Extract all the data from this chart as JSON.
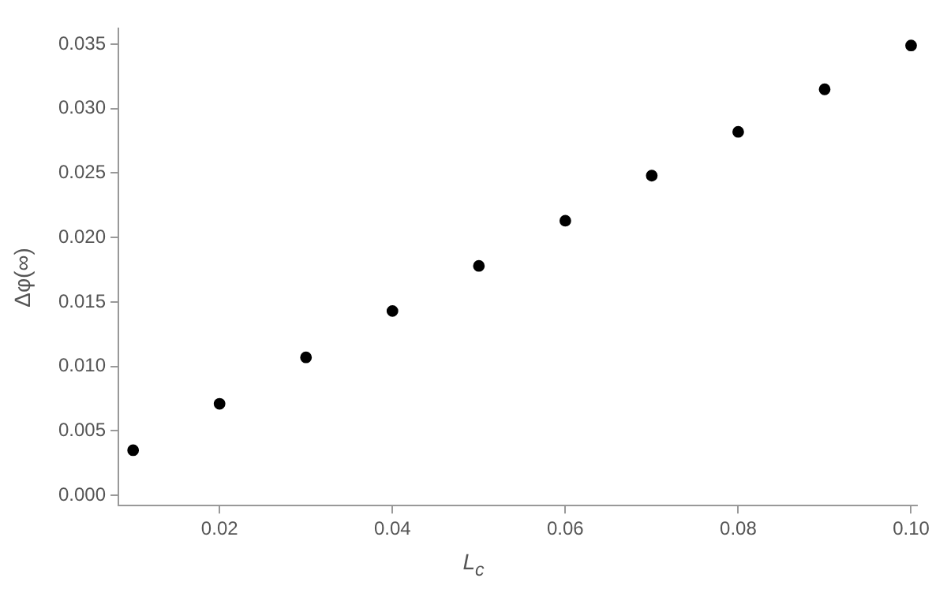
{
  "chart_data": {
    "type": "scatter",
    "xlabel": "L$_{c}$",
    "ylabel": "Δφ(∞)",
    "x": [
      0.01,
      0.02,
      0.03,
      0.04,
      0.05,
      0.06,
      0.07,
      0.08,
      0.09,
      0.1
    ],
    "series": [
      {
        "color": "#000000",
        "values": [
          0.0035,
          0.0071,
          0.0107,
          0.0143,
          0.0178,
          0.0213,
          0.0248,
          0.0282,
          0.0315,
          0.0349
        ]
      }
    ],
    "xlim": [
      0.0083,
      0.1007
    ],
    "ylim": [
      -0.0008,
      0.0362
    ],
    "xticks": [
      {
        "value": 0.02,
        "label": "0.02"
      },
      {
        "value": 0.04,
        "label": "0.04"
      },
      {
        "value": 0.06,
        "label": "0.06"
      },
      {
        "value": 0.08,
        "label": "0.08"
      },
      {
        "value": 0.1,
        "label": "0.10"
      }
    ],
    "yticks": [
      {
        "value": 0,
        "label": "0.000"
      },
      {
        "value": 0.005,
        "label": "0.005"
      },
      {
        "value": 0.01,
        "label": "0.010"
      },
      {
        "value": 0.015,
        "label": "0.015"
      },
      {
        "value": 0.02,
        "label": "0.020"
      },
      {
        "value": 0.025,
        "label": "0.025"
      },
      {
        "value": 0.03,
        "label": "0.030"
      },
      {
        "value": 0.035,
        "label": "0.035"
      }
    ],
    "grid": false,
    "legend": false,
    "marker": "circle"
  }
}
